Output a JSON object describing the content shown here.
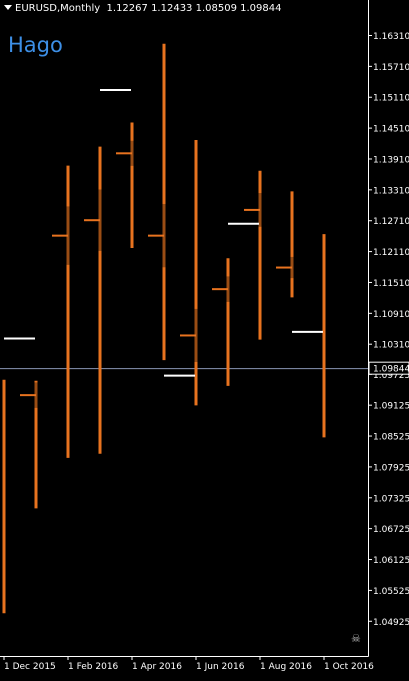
{
  "header": {
    "symbol_timeframe": "EURUSD,Monthly",
    "ohlc": "1.12267 1.12433 1.08509 1.09844"
  },
  "indicator_label": "Hago",
  "colors": {
    "background": "#000000",
    "axis": "#ffffff",
    "bar": "#e8731f",
    "bar_dark": "#9a4d14",
    "marker": "#ffffff",
    "price_line": "#8a96b4",
    "label_text": "#3d8fe6"
  },
  "chart_data": {
    "type": "bar",
    "title": "EURUSD,Monthly",
    "ylim": [
      1.0425,
      1.1665
    ],
    "y_ticks": [
      "1.16310",
      "1.15710",
      "1.15110",
      "1.14510",
      "1.13910",
      "1.13310",
      "1.12710",
      "1.12110",
      "1.11510",
      "1.10910",
      "1.10310",
      "1.09725",
      "1.09125",
      "1.08525",
      "1.07925",
      "1.07325",
      "1.06725",
      "1.06125",
      "1.05525",
      "1.04925"
    ],
    "x_labels": [
      "1 Dec 2015",
      "1 Feb 2016",
      "1 Apr 2016",
      "1 Jun 2016",
      "1 Aug 2016",
      "1 Oct 2016"
    ],
    "current_price": "1.09844",
    "current_price_value": 1.09844,
    "bars": [
      {
        "month": "Dec 2015",
        "high": 1.0962,
        "low": 1.0508,
        "close": null,
        "marker": null
      },
      {
        "month": "Jan 2016",
        "high": 1.096,
        "low": 1.0712,
        "close": 1.0932,
        "marker": 1.1042
      },
      {
        "month": "Feb 2016",
        "high": 1.1378,
        "low": 1.081,
        "close": 1.1242,
        "marker": null
      },
      {
        "month": "Mar 2016",
        "high": 1.1415,
        "low": 1.0818,
        "close": 1.1272,
        "marker": null
      },
      {
        "month": "Apr 2016",
        "high": 1.1462,
        "low": 1.1218,
        "close": 1.1402,
        "marker": 1.1525
      },
      {
        "month": "May 2016",
        "high": 1.1615,
        "low": 1.1,
        "close": 1.1242,
        "marker": null
      },
      {
        "month": "Jun 2016",
        "high": 1.1428,
        "low": 1.0912,
        "close": 1.1048,
        "marker": 1.097
      },
      {
        "month": "Jul 2016",
        "high": 1.1198,
        "low": 1.095,
        "close": 1.1138,
        "marker": null
      },
      {
        "month": "Aug 2016",
        "high": 1.1368,
        "low": 1.104,
        "close": 1.1292,
        "marker": 1.1265
      },
      {
        "month": "Sep 2016",
        "high": 1.1328,
        "low": 1.1122,
        "close": 1.118,
        "marker": null
      },
      {
        "month": "Oct 2016",
        "high": 1.1245,
        "low": 1.085,
        "close": null,
        "marker": 1.1055
      }
    ]
  }
}
